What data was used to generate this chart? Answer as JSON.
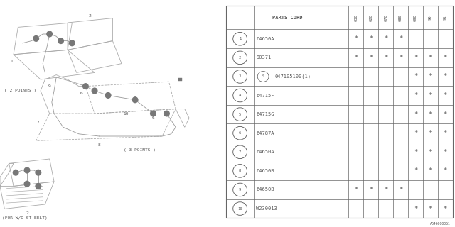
{
  "bg_color": "#ffffff",
  "table_header": "PARTS CORD",
  "col_labels": [
    "030",
    "020",
    "070",
    "080",
    "090",
    "90",
    "91"
  ],
  "rows": [
    {
      "num": "1",
      "part": "64650A",
      "special": false,
      "stars": [
        1,
        1,
        1,
        1,
        0,
        0,
        0
      ]
    },
    {
      "num": "2",
      "part": "90371",
      "special": false,
      "stars": [
        1,
        1,
        1,
        1,
        1,
        1,
        1
      ]
    },
    {
      "num": "3",
      "part": "047105100(1)",
      "special": true,
      "stars": [
        0,
        0,
        0,
        0,
        1,
        1,
        1
      ]
    },
    {
      "num": "4",
      "part": "64715F",
      "special": false,
      "stars": [
        0,
        0,
        0,
        0,
        1,
        1,
        1
      ]
    },
    {
      "num": "5",
      "part": "64715G",
      "special": false,
      "stars": [
        0,
        0,
        0,
        0,
        1,
        1,
        1
      ]
    },
    {
      "num": "6",
      "part": "64787A",
      "special": false,
      "stars": [
        0,
        0,
        0,
        0,
        1,
        1,
        1
      ]
    },
    {
      "num": "7",
      "part": "64650A",
      "special": false,
      "stars": [
        0,
        0,
        0,
        0,
        1,
        1,
        1
      ]
    },
    {
      "num": "8",
      "part": "64650B",
      "special": false,
      "stars": [
        0,
        0,
        0,
        0,
        1,
        1,
        1
      ]
    },
    {
      "num": "9",
      "part": "64650B",
      "special": false,
      "stars": [
        1,
        1,
        1,
        1,
        0,
        0,
        0
      ]
    },
    {
      "num": "10",
      "part": "W230013",
      "special": false,
      "stars": [
        0,
        0,
        0,
        0,
        1,
        1,
        1
      ]
    }
  ],
  "footer": "A646000061",
  "label_2points": "( 2 POINTS )",
  "label_3points": "( 3 POINTS )",
  "label_wo": "(FOR W/O ST BELT)"
}
